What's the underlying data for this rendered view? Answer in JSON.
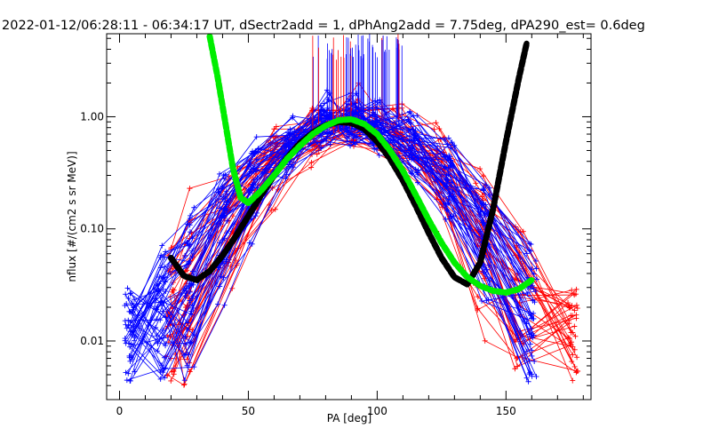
{
  "chart_data": {
    "type": "scatter",
    "title": "2022-01-12/06:28:11 - 06:34:17 UT, dSectr2add = 1, dPhAng2add = 7.75deg, dPA290_est=    0.6deg",
    "xlabel": "PA [deg]",
    "ylabel": "nflux [#/(cm2 s sr MeV)]",
    "xlim": [
      -5,
      183
    ],
    "ylim": [
      0.003,
      5.5
    ],
    "yscale": "log",
    "xticks": [
      0,
      50,
      100,
      150
    ],
    "xtick_labels": [
      "0",
      "50",
      "100",
      "150"
    ],
    "yticks": [
      0.01,
      0.1,
      1.0
    ],
    "ytick_labels": [
      "0.01",
      "0.10",
      "1.00"
    ],
    "grid": false,
    "legend": "none",
    "colors": {
      "red_series": "#ff0000",
      "blue_series": "#0000ff",
      "black_fit": "#000000",
      "green_fit": "#00ee00",
      "axes": "#000000"
    },
    "series": [
      {
        "color": "#000000",
        "style": "thick dashed curve",
        "x": [
          20,
          25,
          30,
          35,
          40,
          45,
          50,
          55,
          60,
          65,
          70,
          75,
          80,
          85,
          90,
          95,
          100,
          105,
          110,
          115,
          120,
          125,
          130,
          135,
          140,
          145,
          150,
          155,
          158
        ],
        "y": [
          0.055,
          0.038,
          0.035,
          0.042,
          0.058,
          0.085,
          0.13,
          0.2,
          0.3,
          0.43,
          0.58,
          0.72,
          0.84,
          0.9,
          0.88,
          0.78,
          0.6,
          0.42,
          0.27,
          0.16,
          0.092,
          0.055,
          0.037,
          0.032,
          0.05,
          0.15,
          0.6,
          2.2,
          4.5
        ]
      },
      {
        "color": "#00ee00",
        "style": "thick dashed curve",
        "x": [
          35,
          38,
          41,
          44,
          47,
          50,
          55,
          60,
          65,
          70,
          75,
          80,
          85,
          90,
          95,
          100,
          105,
          110,
          115,
          120,
          125,
          130,
          135,
          140,
          145,
          150,
          155,
          160
        ],
        "y": [
          5.2,
          2.3,
          0.9,
          0.35,
          0.19,
          0.17,
          0.22,
          0.3,
          0.42,
          0.55,
          0.7,
          0.83,
          0.93,
          0.95,
          0.86,
          0.7,
          0.5,
          0.33,
          0.2,
          0.12,
          0.075,
          0.05,
          0.037,
          0.031,
          0.028,
          0.027,
          0.029,
          0.035
        ]
      }
    ]
  }
}
